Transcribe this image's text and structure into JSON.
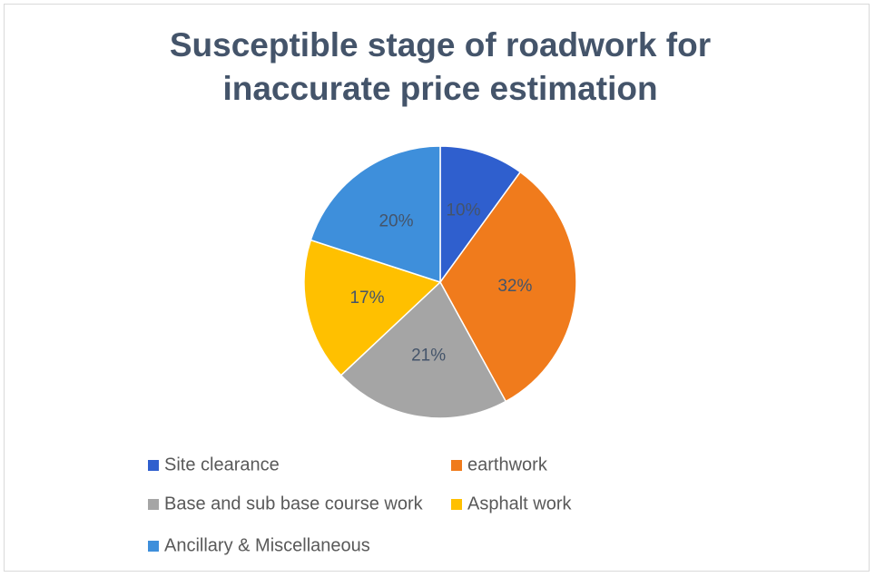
{
  "chart_data": {
    "type": "pie",
    "title": "Susceptible stage of roadwork for inaccurate price estimation",
    "categories": [
      "Site clearance",
      "earthwork",
      "Base and sub base course work",
      "Asphalt work",
      "Ancillary & Miscellaneous"
    ],
    "values": [
      10,
      32,
      21,
      17,
      20
    ],
    "value_labels": [
      "10%",
      "32%",
      "21%",
      "17%",
      "20%"
    ],
    "colors": [
      "#2F5FCE",
      "#F07B1C",
      "#A5A5A5",
      "#FFC000",
      "#3E8FDB"
    ],
    "legend": "bottom"
  }
}
